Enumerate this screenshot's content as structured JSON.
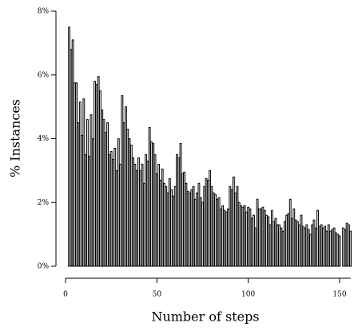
{
  "chart_data": {
    "type": "bar",
    "xlabel": "Number of steps",
    "ylabel": "% Instances",
    "x": [
      2,
      3,
      4,
      5,
      6,
      7,
      8,
      9,
      10,
      11,
      12,
      13,
      14,
      15,
      16,
      17,
      18,
      19,
      20,
      21,
      22,
      23,
      24,
      25,
      26,
      27,
      28,
      29,
      30,
      31,
      32,
      33,
      34,
      35,
      36,
      37,
      38,
      39,
      40,
      41,
      42,
      43,
      44,
      45,
      46,
      47,
      48,
      49,
      50,
      51,
      52,
      53,
      54,
      55,
      56,
      57,
      58,
      59,
      60,
      61,
      62,
      63,
      64,
      65,
      66,
      67,
      68,
      69,
      70,
      71,
      72,
      73,
      74,
      75,
      76,
      77,
      78,
      79,
      80,
      81,
      82,
      83,
      84,
      85,
      86,
      87,
      88,
      89,
      90,
      91,
      92,
      93,
      94,
      95,
      96,
      97,
      98,
      99,
      100,
      101,
      102,
      103,
      104,
      105,
      106,
      107,
      108,
      109,
      110,
      111,
      112,
      113,
      114,
      115,
      116,
      117,
      118,
      119,
      120,
      121,
      122,
      123,
      124,
      125,
      126,
      127,
      128,
      129,
      130,
      131,
      132,
      133,
      134,
      135,
      136,
      137,
      138,
      139,
      140,
      141,
      142,
      143,
      144,
      145,
      146,
      147,
      148,
      149,
      150,
      151,
      152,
      153,
      154,
      155,
      156
    ],
    "values": [
      7.5,
      6.8,
      7.1,
      5.75,
      5.75,
      4.5,
      5.15,
      4.1,
      5.25,
      3.5,
      4.6,
      3.45,
      4.75,
      4.0,
      5.8,
      5.7,
      5.95,
      5.5,
      4.9,
      4.6,
      4.2,
      4.5,
      3.5,
      3.6,
      3.35,
      3.7,
      3.0,
      4.0,
      3.2,
      5.35,
      4.5,
      5.0,
      4.3,
      4.0,
      3.8,
      3.4,
      3.2,
      3.0,
      3.4,
      3.0,
      3.2,
      2.6,
      3.5,
      3.3,
      4.35,
      3.9,
      3.85,
      3.5,
      2.9,
      3.2,
      2.7,
      3.05,
      2.6,
      2.5,
      2.3,
      2.75,
      2.4,
      2.2,
      2.5,
      3.5,
      3.4,
      3.85,
      2.9,
      2.95,
      2.6,
      2.35,
      2.3,
      2.4,
      2.5,
      2.1,
      2.3,
      2.6,
      2.15,
      2.0,
      2.5,
      2.75,
      2.7,
      3.0,
      2.5,
      2.3,
      2.25,
      2.1,
      2.15,
      1.8,
      1.9,
      1.75,
      1.7,
      1.8,
      2.5,
      2.4,
      2.8,
      2.3,
      2.5,
      2.0,
      1.9,
      1.85,
      1.9,
      1.7,
      1.85,
      1.8,
      1.5,
      1.6,
      1.2,
      2.1,
      1.8,
      1.8,
      1.85,
      1.75,
      1.6,
      1.55,
      1.3,
      1.75,
      1.4,
      1.5,
      1.3,
      1.3,
      1.2,
      1.1,
      1.4,
      1.6,
      1.65,
      2.1,
      1.5,
      1.8,
      1.45,
      1.4,
      1.3,
      1.6,
      1.25,
      1.2,
      1.3,
      1.15,
      1.0,
      1.3,
      1.45,
      1.2,
      1.75,
      1.25,
      1.3,
      1.2,
      1.25,
      1.1,
      1.3,
      1.1,
      1.15,
      1.2,
      1.05,
      1.0,
      0.95,
      0,
      1.2,
      1.15,
      1.35,
      1.3,
      1.1
    ],
    "color": "#000000",
    "xlim": [
      0,
      156
    ],
    "xticks": [
      0,
      50,
      100,
      150
    ],
    "ylim": [
      0,
      8
    ],
    "yticks": [
      {
        "value": 0,
        "label": "0%"
      },
      {
        "value": 2,
        "label": "2%"
      },
      {
        "value": 4,
        "label": "4%"
      },
      {
        "value": 6,
        "label": "6%"
      },
      {
        "value": 8,
        "label": "8%"
      }
    ]
  }
}
